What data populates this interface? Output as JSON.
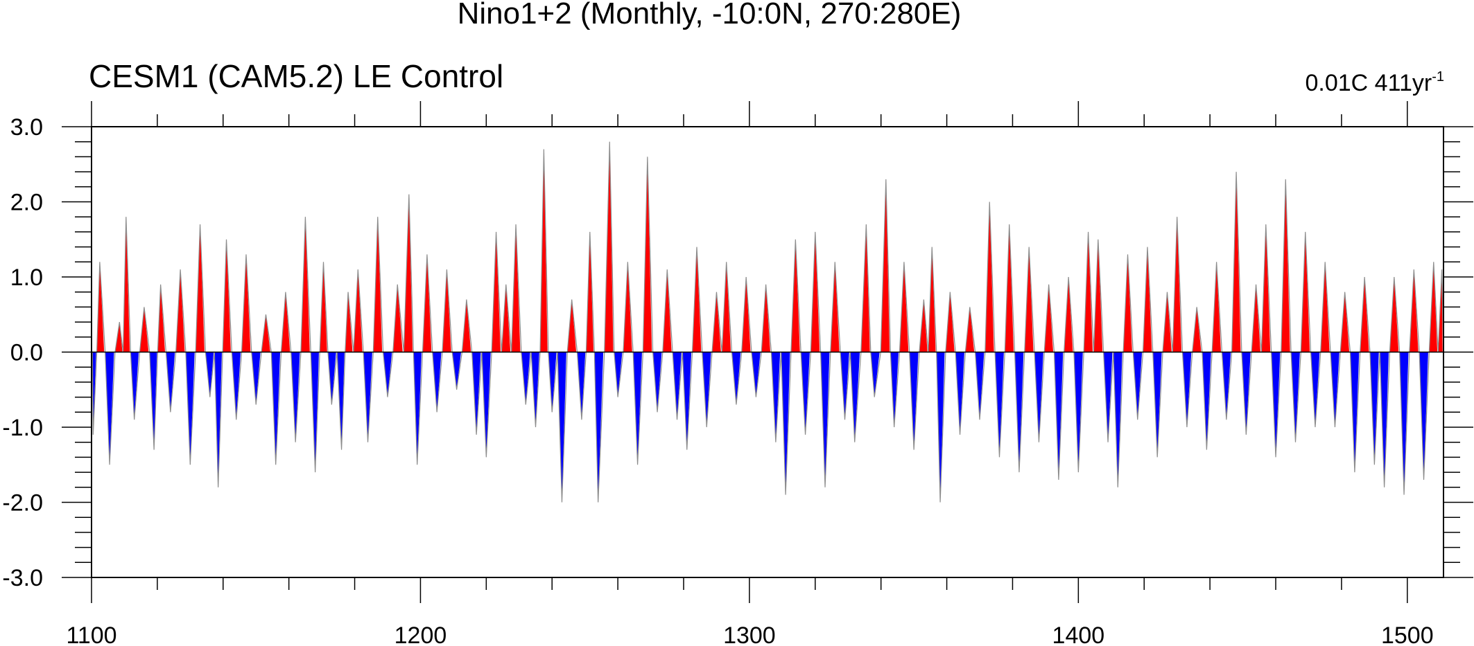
{
  "chart_data": {
    "type": "area",
    "title": "Nino1+2 (Monthly, -10:0N, 270:280E)",
    "subtitle_left": "CESM1 (CAM5.2) LE Control",
    "subtitle_right": "0.01C 411yr",
    "subtitle_right_exponent": "-1",
    "xlabel": "",
    "ylabel": "",
    "xlim": [
      1100,
      1511
    ],
    "ylim": [
      -3.0,
      3.0
    ],
    "x_ticks": [
      "1100",
      "1200",
      "1300",
      "1400",
      "1500"
    ],
    "y_ticks": [
      "3.0",
      "2.0",
      "1.0",
      "0.0",
      "-1.0",
      "-2.0",
      "-3.0"
    ],
    "positive_color": "#ff0000",
    "negative_color": "#0000ff",
    "line_color": "#8c8c8c",
    "grid": false,
    "legend": "none",
    "series": [
      {
        "x": [
          1100.5,
          1102.5,
          1105.5,
          1108.5,
          1110.5,
          1113,
          1116,
          1119,
          1121,
          1124,
          1127,
          1130,
          1133,
          1136,
          1138.5,
          1141,
          1144,
          1147,
          1150,
          1153,
          1156,
          1159,
          1162,
          1165,
          1168,
          1170.5,
          1173,
          1176,
          1178,
          1181,
          1184,
          1187,
          1190,
          1193,
          1196.5,
          1199,
          1202,
          1205,
          1208,
          1211,
          1214,
          1217,
          1220,
          1223,
          1226,
          1229,
          1232,
          1235,
          1237.5,
          1240,
          1243,
          1246,
          1249,
          1251.5,
          1254,
          1257.5,
          1260,
          1263,
          1266,
          1269,
          1272,
          1275,
          1278,
          1281,
          1284,
          1287,
          1290,
          1293,
          1296,
          1299,
          1302,
          1305,
          1308,
          1311,
          1314,
          1317,
          1320,
          1323,
          1326,
          1329,
          1332,
          1335.5,
          1338,
          1341.5,
          1344,
          1347,
          1350,
          1353,
          1355.5,
          1358,
          1361,
          1364,
          1367,
          1370,
          1373,
          1376,
          1379,
          1382,
          1385,
          1388,
          1391,
          1394,
          1397,
          1400,
          1403,
          1406,
          1409,
          1412,
          1415,
          1418,
          1421,
          1424,
          1427,
          1430,
          1433,
          1436,
          1439,
          1442,
          1445,
          1448,
          1451,
          1454,
          1457,
          1460,
          1463,
          1466,
          1469,
          1472,
          1475,
          1478,
          1481,
          1484,
          1487,
          1490,
          1493,
          1496,
          1499,
          1502,
          1505,
          1508,
          1510.5
        ],
        "y": [
          -1.1,
          1.2,
          -1.5,
          0.4,
          1.8,
          -0.9,
          0.6,
          -1.3,
          0.9,
          -0.8,
          1.1,
          -1.5,
          1.7,
          -0.6,
          -1.8,
          1.5,
          -0.9,
          1.3,
          -0.7,
          0.5,
          -1.5,
          0.8,
          -1.2,
          1.8,
          -1.6,
          1.2,
          -0.7,
          -1.3,
          0.8,
          1.1,
          -1.2,
          1.8,
          -0.6,
          0.9,
          2.1,
          -1.5,
          1.3,
          -0.8,
          1.1,
          -0.5,
          0.7,
          -1.1,
          -1.4,
          1.6,
          0.9,
          1.7,
          -0.7,
          -1.0,
          2.7,
          -0.8,
          -2.0,
          0.7,
          -0.9,
          1.6,
          -2.0,
          2.8,
          -0.6,
          1.2,
          -1.5,
          2.6,
          -0.8,
          1.1,
          -0.9,
          -1.3,
          1.4,
          -1.0,
          0.8,
          1.2,
          -0.7,
          1.0,
          -0.6,
          0.9,
          -1.2,
          -1.9,
          1.5,
          -1.1,
          1.6,
          -1.8,
          1.2,
          -0.9,
          -1.2,
          1.7,
          -0.6,
          2.3,
          -1.0,
          1.2,
          -1.3,
          0.7,
          1.4,
          -2.0,
          0.8,
          -1.1,
          0.6,
          -0.9,
          2.0,
          -1.4,
          1.7,
          -1.6,
          1.4,
          -1.2,
          0.9,
          -1.7,
          1.0,
          -1.6,
          1.6,
          1.5,
          -1.2,
          -1.8,
          1.3,
          -0.9,
          1.4,
          -1.4,
          0.8,
          1.8,
          -1.0,
          0.6,
          -1.3,
          1.2,
          -0.9,
          2.4,
          -1.1,
          0.9,
          1.7,
          -1.4,
          2.3,
          -1.2,
          1.6,
          -1.0,
          1.2,
          -1.0,
          0.8,
          -1.6,
          1.0,
          -1.5,
          -1.8,
          1.0,
          -1.9,
          1.1,
          -1.7,
          1.2,
          1.1
        ]
      }
    ]
  }
}
